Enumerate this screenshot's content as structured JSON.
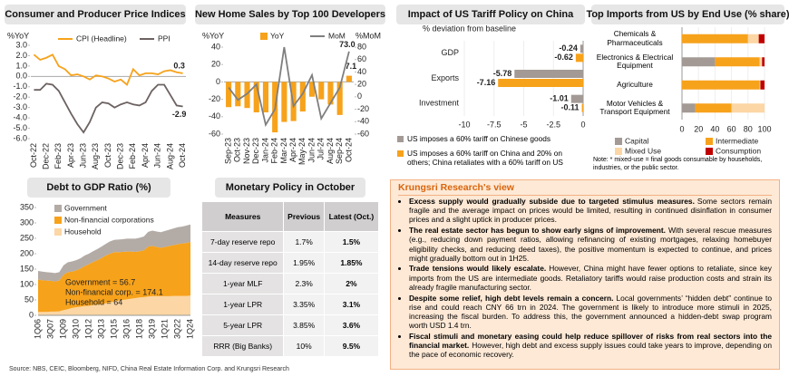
{
  "chart_data": [
    {
      "type": "line",
      "title": "Consumer and Producer Price Indices",
      "y_label": "%YoY",
      "categories": [
        "Oct-22",
        null,
        "Dec-22",
        null,
        "Feb-23",
        null,
        "Apr-23",
        null,
        "Jun-23",
        null,
        "Aug-23",
        null,
        "Oct-23",
        null,
        "Dec-23",
        null,
        "Feb-24",
        null,
        "Apr-24",
        null,
        "Jun-24",
        null,
        "Aug-24",
        null,
        "Oct-24"
      ],
      "series": [
        {
          "name": "CPI (Headline)",
          "color": "#f7a21b",
          "values": [
            2.1,
            1.6,
            1.8,
            2.1,
            1.0,
            0.7,
            0.1,
            0.2,
            0.0,
            -0.3,
            0.1,
            0.0,
            -0.2,
            -0.5,
            -0.3,
            -0.8,
            0.7,
            0.1,
            0.3,
            0.3,
            0.2,
            0.5,
            0.6,
            0.4,
            0.3
          ],
          "value_labels": [
            null,
            null,
            null,
            null,
            null,
            null,
            null,
            null,
            null,
            null,
            null,
            null,
            null,
            null,
            null,
            null,
            null,
            null,
            null,
            null,
            null,
            null,
            null,
            null,
            "0.3"
          ]
        },
        {
          "name": "PPI",
          "color": "#6d6262",
          "values": [
            -1.3,
            -1.3,
            -0.7,
            -0.8,
            -1.4,
            -2.5,
            -3.6,
            -4.6,
            -5.4,
            -4.4,
            -3.0,
            -2.5,
            -2.6,
            -3.0,
            -2.7,
            -2.5,
            -2.7,
            -2.8,
            -2.5,
            -1.4,
            -0.8,
            -0.8,
            -1.8,
            -2.8,
            -2.9
          ],
          "value_labels": [
            null,
            null,
            null,
            null,
            null,
            null,
            null,
            null,
            null,
            null,
            null,
            null,
            null,
            null,
            null,
            null,
            null,
            null,
            null,
            null,
            null,
            null,
            null,
            null,
            "-2.9"
          ]
        }
      ],
      "ylim": [
        -6,
        3
      ],
      "yticks": [
        {
          "value": 3,
          "label": "3.0"
        },
        {
          "value": 2,
          "label": "2.0"
        },
        {
          "value": 1,
          "label": "1.0"
        },
        {
          "value": 0,
          "label": "0.0"
        },
        {
          "value": -1,
          "label": "-1.0"
        },
        {
          "value": -2,
          "label": "-2.0"
        },
        {
          "value": -3,
          "label": "-3.0"
        },
        {
          "value": -4,
          "label": "-4.0"
        },
        {
          "value": -5,
          "label": "-5.0"
        },
        {
          "value": -6,
          "label": "-6.0"
        }
      ]
    },
    {
      "type": "bar",
      "title": "New Home Sales by Top 100 Developers",
      "y_label": "%YoY",
      "y2_label": "%MoM",
      "categories": [
        "Sep-23",
        "Oct-23",
        "Nov-23",
        "Dec-23",
        "Jan-24",
        "Feb-24",
        "Mar-24",
        "Apr-24",
        "May-24",
        "Jun-24",
        "Jul-24",
        "Aug-24",
        "Sep-24",
        "Oct-24"
      ],
      "series": [
        {
          "name": "YoY",
          "color": "#f7a21b",
          "values": [
            -29,
            -28,
            -30,
            -35,
            -35,
            -58,
            -46,
            -45,
            -34,
            -17,
            -20,
            -26,
            -38,
            7.1
          ],
          "value_labels": [
            null,
            null,
            null,
            null,
            null,
            null,
            null,
            null,
            null,
            null,
            null,
            null,
            null,
            "7.1"
          ]
        },
        {
          "name": "MoM",
          "type": "line",
          "axis": "y2",
          "color": "#7f7f7f",
          "values": [
            15,
            -5,
            5,
            20,
            -45,
            -20,
            80,
            -15,
            5,
            35,
            -35,
            -10,
            15,
            73
          ],
          "value_labels": [
            null,
            null,
            null,
            null,
            null,
            null,
            null,
            null,
            null,
            null,
            null,
            null,
            null,
            "73.0"
          ]
        }
      ],
      "ylim": [
        -60,
        40
      ],
      "yticks": [
        -60,
        -40,
        -20,
        0,
        20,
        40
      ],
      "y2lim": [
        -60,
        80
      ],
      "y2ticks": [
        -60,
        -40,
        -20,
        0,
        20,
        40,
        60,
        80
      ]
    },
    {
      "type": "bar",
      "orientation": "horizontal",
      "title": "Impact of US Tariff Policy on China",
      "subtitle": "% deviation from baseline",
      "categories": [
        "GDP",
        "Exports",
        "Investment"
      ],
      "series": [
        {
          "name": "US imposes a 60% tariff on Chinese goods",
          "color": "#a39a95",
          "values": [
            -0.24,
            -5.78,
            -1.01
          ],
          "value_labels": [
            "-0.24",
            "-5.78",
            "-1.01"
          ]
        },
        {
          "name": "US imposes a 60% tariff on China and 20% on others; China retaliates with a 60% tariff on US",
          "color": "#f7a21b",
          "values": [
            -0.62,
            -7.16,
            -0.11
          ],
          "value_labels": [
            "-0.62",
            "-7.16",
            "-0.11"
          ]
        }
      ],
      "xlim": [
        -10,
        0
      ],
      "xticks": [
        -10,
        -7.5,
        -5,
        -2.5,
        0
      ]
    },
    {
      "type": "bar",
      "orientation": "horizontal",
      "stacked": true,
      "title": "Top Imports from US by End Use (% share)",
      "categories": [
        "Chemicals & Pharmaceuticals",
        "Electronics & Electrical Equipment",
        "Agriculture",
        "Motor Vehicles & Transport Equipment"
      ],
      "series": [
        {
          "name": "Capital",
          "color": "#a39a95",
          "values": [
            0,
            40,
            0,
            16
          ]
        },
        {
          "name": "Intermediate",
          "color": "#f7a21b",
          "values": [
            80,
            54,
            94,
            44
          ]
        },
        {
          "name": "Mixed Use",
          "color": "#fcd6a4",
          "values": [
            13,
            3,
            1,
            40
          ]
        },
        {
          "name": "Consumption",
          "color": "#c00000",
          "values": [
            7,
            3,
            5,
            0
          ]
        }
      ],
      "xlim": [
        0,
        100
      ],
      "xticks": [
        0,
        20,
        40,
        60,
        80,
        100
      ],
      "note": "Note: * mixed-use = final goods consumable by households, industries, or the public sector."
    },
    {
      "type": "area",
      "stacked": true,
      "title": "Debt to GDP Ratio (%)",
      "categories": [
        "1Q06",
        null,
        null,
        "3Q07",
        null,
        null,
        "1Q09",
        null,
        null,
        "3Q10",
        null,
        null,
        "1Q12",
        null,
        null,
        "3Q13",
        null,
        null,
        "1Q15",
        null,
        null,
        "3Q16",
        null,
        null,
        "1Q18",
        null,
        null,
        "3Q19",
        null,
        null,
        "1Q21",
        null,
        null,
        "3Q22",
        null,
        null,
        "1Q24"
      ],
      "series": [
        {
          "name": "Government",
          "color": "#b3aba6",
          "values": [
            28,
            28,
            27,
            27,
            27,
            27,
            30,
            32,
            33,
            33,
            33,
            34,
            34,
            35,
            36,
            37,
            38,
            40,
            40,
            41,
            41,
            42,
            42,
            43,
            44,
            45,
            48,
            50,
            50,
            51,
            52,
            53,
            54,
            55,
            55,
            56,
            56.7
          ]
        },
        {
          "name": "Non-financial corporations",
          "color": "#f7a21b",
          "values": [
            105,
            103,
            102,
            100,
            98,
            100,
            115,
            120,
            118,
            120,
            124,
            130,
            135,
            140,
            145,
            150,
            155,
            158,
            160,
            157,
            156,
            155,
            153,
            150,
            150,
            152,
            162,
            163,
            160,
            157,
            160,
            163,
            165,
            168,
            170,
            172,
            174.1
          ]
        },
        {
          "name": "Household",
          "color": "#fcd6a4",
          "values": [
            11,
            11,
            11,
            12,
            12,
            13,
            17,
            20,
            24,
            26,
            28,
            30,
            31,
            33,
            34,
            36,
            39,
            42,
            45,
            48,
            50,
            52,
            54,
            56,
            58,
            59,
            61,
            62,
            62,
            62,
            62,
            62,
            63,
            63,
            63,
            63,
            64
          ]
        }
      ],
      "ylim": [
        0,
        350
      ],
      "yticks": [
        0,
        50,
        100,
        150,
        200,
        250,
        300,
        350
      ],
      "annotations": [
        "Government = 56.7",
        "Non-financial corp. = 174.1",
        "Household = 64"
      ]
    }
  ],
  "table": {
    "title": "Monetary Policy in October",
    "header": [
      "Measures",
      "Previous",
      "Latest (Oct.)"
    ],
    "rows": [
      [
        "7-day reserve repo",
        "1.7%",
        "1.5%"
      ],
      [
        "14-day reserve repo",
        "1.95%",
        "1.85%"
      ],
      [
        "1-year MLF",
        "2.3%",
        "2%"
      ],
      [
        "1-year LPR",
        "3.35%",
        "3.1%"
      ],
      [
        "5-year LPR",
        "3.85%",
        "3.6%"
      ],
      [
        "RRR (Big Banks)",
        "10%",
        "9.5%"
      ]
    ]
  },
  "view": {
    "title": "Krungsri Research's view",
    "points": [
      {
        "lead": "Excess supply would gradually subside due to targeted stimulus measures.",
        "text": "Some sectors remain fragile and the average impact on prices would be limited, resulting in continued disinflation in consumer prices and a slight uptick in producer prices."
      },
      {
        "lead": "The real estate sector has begun to show early signs of improvement.",
        "text": "With several rescue measures (e.g., reducing down payment ratios, allowing refinancing of existing mortgages, relaxing homebuyer eligibility checks, and reducing deed taxes), the positive momentum is expected to continue, and prices might gradually bottom out in 1H25."
      },
      {
        "lead": "Trade tensions would likely escalate.",
        "text": "However, China might have fewer options to retaliate, since key imports from the US are intermediate goods. Retaliatory tariffs would raise production costs and strain its already fragile manufacturing sector."
      },
      {
        "lead": "Despite some relief, high debt levels remain a concern.",
        "text": "Local governments’ “hidden debt” continue to rise and could reach CNY 66 trn in 2024. The government is likely to introduce more stimuli in 2025, increasing the fiscal burden. To address this, the government announced a hidden-debt swap program worth USD 1.4 trn."
      },
      {
        "lead": "Fiscal stimuli and monetary easing could help reduce spillover of risks from real sectors into the financial market.",
        "text": "However, high debt and excess supply issues could take years to improve, depending on the pace of economic recovery."
      }
    ]
  },
  "source": "Source: NBS, CEIC, Bloomberg, NIFD, China Real Estate Information Corp. and Krungsri Research"
}
